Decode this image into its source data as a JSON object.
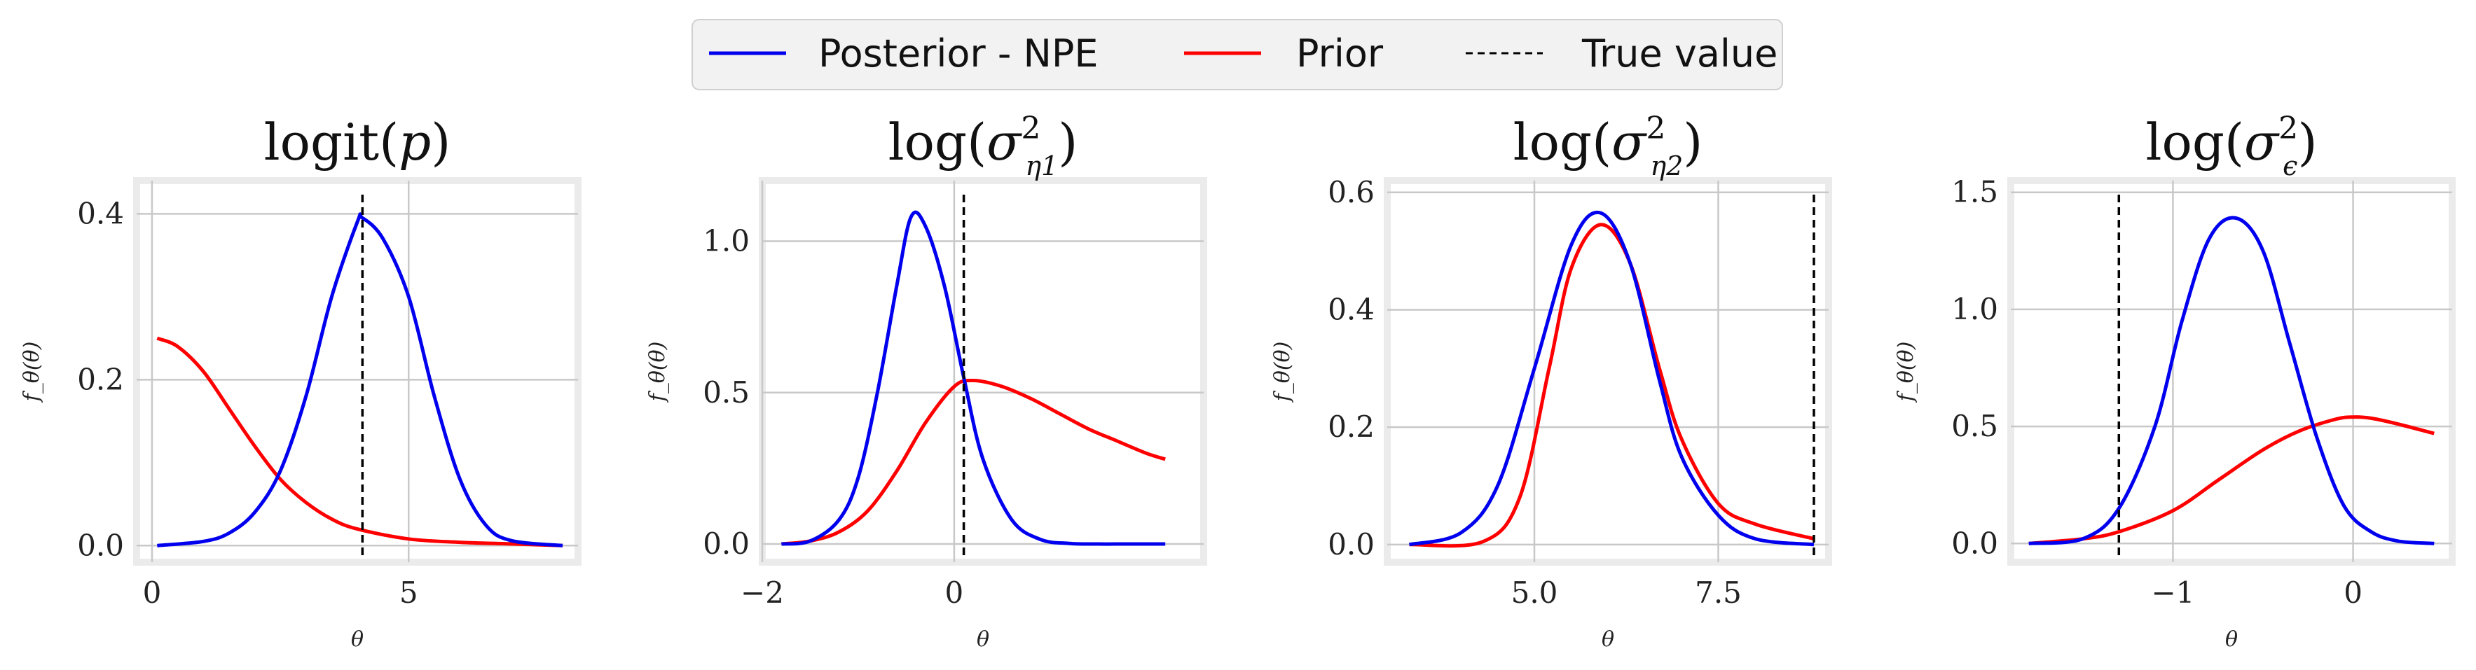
{
  "legend": {
    "items": [
      {
        "label": "Posterior - NPE",
        "color": "#0000ee",
        "style": "solid"
      },
      {
        "label": "Prior",
        "color": "#ff0000",
        "style": "solid"
      },
      {
        "label": "True value",
        "color": "#000000",
        "style": "dashed"
      }
    ],
    "placement": "top-center"
  },
  "chart_data": [
    {
      "type": "line",
      "title": "logit(p)",
      "title_parts": {
        "base": "logit(",
        "var": "p",
        "sub": "",
        "close": ")"
      },
      "xlabel": "θ",
      "ylabel": "f_θ(θ)",
      "xlim": [
        -0.3,
        8.3
      ],
      "ylim": [
        -0.02,
        0.44
      ],
      "xticks": [
        0,
        5
      ],
      "xtick_labels": [
        "0",
        "5"
      ],
      "yticks": [
        0.0,
        0.2,
        0.4
      ],
      "ytick_labels": [
        "0.0",
        "0.2",
        "0.4"
      ],
      "grid": true,
      "true_value": 4.1,
      "series": [
        {
          "name": "Posterior - NPE",
          "color": "#0000ee",
          "x": [
            0.1,
            1.0,
            1.5,
            2.0,
            2.5,
            3.0,
            3.5,
            4.0,
            4.1,
            4.5,
            5.0,
            5.5,
            6.0,
            6.5,
            7.0,
            8.0
          ],
          "y": [
            0.0,
            0.005,
            0.015,
            0.04,
            0.09,
            0.18,
            0.3,
            0.39,
            0.395,
            0.37,
            0.3,
            0.18,
            0.08,
            0.025,
            0.006,
            0.0
          ]
        },
        {
          "name": "Prior",
          "color": "#ff0000",
          "x": [
            0.1,
            0.5,
            1.0,
            1.5,
            2.0,
            2.5,
            3.0,
            3.5,
            4.0,
            5.0,
            6.0,
            7.0,
            8.0
          ],
          "y": [
            0.25,
            0.24,
            0.21,
            0.165,
            0.12,
            0.08,
            0.052,
            0.032,
            0.02,
            0.008,
            0.004,
            0.002,
            0.0
          ]
        }
      ]
    },
    {
      "type": "line",
      "title": "log(σ²_η1)",
      "title_parts": {
        "base": "log(",
        "var": "σ",
        "sub": "η1",
        "close": ")"
      },
      "xlabel": "θ",
      "ylabel": "f_θ(θ)",
      "xlim": [
        -2.0,
        2.6
      ],
      "ylim": [
        -0.06,
        1.2
      ],
      "xticks": [
        -2,
        0
      ],
      "xtick_labels": [
        "−2",
        "0"
      ],
      "yticks": [
        0.0,
        0.5,
        1.0
      ],
      "ytick_labels": [
        "0.0",
        "0.5",
        "1.0"
      ],
      "grid": true,
      "true_value": 0.1,
      "series": [
        {
          "name": "Posterior - NPE",
          "color": "#0000ee",
          "x": [
            -1.8,
            -1.5,
            -1.2,
            -1.0,
            -0.8,
            -0.6,
            -0.45,
            -0.3,
            -0.1,
            0.1,
            0.3,
            0.6,
            0.9,
            1.2,
            1.5,
            1.8,
            2.2
          ],
          "y": [
            0.0,
            0.01,
            0.08,
            0.22,
            0.5,
            0.85,
            1.08,
            1.05,
            0.85,
            0.55,
            0.28,
            0.08,
            0.015,
            0.002,
            0.0,
            0.0,
            0.0
          ]
        },
        {
          "name": "Prior",
          "color": "#ff0000",
          "x": [
            -1.8,
            -1.5,
            -1.2,
            -0.9,
            -0.6,
            -0.3,
            0.0,
            0.2,
            0.5,
            0.8,
            1.1,
            1.4,
            1.7,
            2.0,
            2.2
          ],
          "y": [
            0.0,
            0.01,
            0.04,
            0.11,
            0.24,
            0.4,
            0.52,
            0.54,
            0.52,
            0.48,
            0.43,
            0.38,
            0.34,
            0.3,
            0.28
          ]
        }
      ]
    },
    {
      "type": "line",
      "title": "log(σ²_η2)",
      "title_parts": {
        "base": "log(",
        "var": "σ",
        "sub": "η2",
        "close": ")"
      },
      "xlabel": "θ",
      "ylabel": "f_θ(θ)",
      "xlim": [
        3.0,
        9.0
      ],
      "ylim": [
        -0.03,
        0.62
      ],
      "xticks": [
        5.0,
        7.5
      ],
      "xtick_labels": [
        "5.0",
        "7.5"
      ],
      "yticks": [
        0.0,
        0.2,
        0.4,
        0.6
      ],
      "ytick_labels": [
        "0.0",
        "0.2",
        "0.4",
        "0.6"
      ],
      "grid": true,
      "true_value": 8.8,
      "series": [
        {
          "name": "Posterior - NPE",
          "color": "#0000ee",
          "x": [
            3.3,
            4.0,
            4.5,
            5.0,
            5.5,
            5.9,
            6.3,
            6.7,
            7.0,
            7.5,
            8.0,
            8.8
          ],
          "y": [
            0.0,
            0.02,
            0.1,
            0.3,
            0.51,
            0.565,
            0.48,
            0.28,
            0.15,
            0.05,
            0.01,
            0.0
          ]
        },
        {
          "name": "Prior",
          "color": "#ff0000",
          "x": [
            3.3,
            4.3,
            4.8,
            5.2,
            5.5,
            5.9,
            6.3,
            6.7,
            7.0,
            7.5,
            8.0,
            8.8
          ],
          "y": [
            0.0,
            0.005,
            0.08,
            0.3,
            0.47,
            0.545,
            0.48,
            0.3,
            0.18,
            0.07,
            0.035,
            0.01
          ]
        }
      ]
    },
    {
      "type": "line",
      "title": "log(σ²_ϵ)",
      "title_parts": {
        "base": "log(",
        "var": "σ",
        "sub": "ϵ",
        "close": ")"
      },
      "xlabel": "θ",
      "ylabel": "f_θ(θ)",
      "xlim": [
        -1.9,
        0.55
      ],
      "ylim": [
        -0.08,
        1.55
      ],
      "xticks": [
        -1,
        0
      ],
      "xtick_labels": [
        "−1",
        "0"
      ],
      "yticks": [
        0.0,
        0.5,
        1.0,
        1.5
      ],
      "ytick_labels": [
        "0.0",
        "0.5",
        "1.0",
        "1.5"
      ],
      "grid": true,
      "true_value": -1.3,
      "series": [
        {
          "name": "Posterior - NPE",
          "color": "#0000ee",
          "x": [
            -1.8,
            -1.5,
            -1.3,
            -1.1,
            -0.95,
            -0.8,
            -0.65,
            -0.5,
            -0.35,
            -0.2,
            -0.05,
            0.1,
            0.25,
            0.45
          ],
          "y": [
            0.0,
            0.02,
            0.15,
            0.5,
            0.95,
            1.3,
            1.39,
            1.25,
            0.85,
            0.45,
            0.16,
            0.05,
            0.01,
            0.0
          ]
        },
        {
          "name": "Prior",
          "color": "#ff0000",
          "x": [
            -1.8,
            -1.5,
            -1.3,
            -1.0,
            -0.75,
            -0.5,
            -0.3,
            -0.1,
            0.0,
            0.1,
            0.25,
            0.45
          ],
          "y": [
            0.0,
            0.02,
            0.05,
            0.14,
            0.27,
            0.4,
            0.48,
            0.53,
            0.54,
            0.535,
            0.51,
            0.47
          ]
        }
      ]
    }
  ]
}
